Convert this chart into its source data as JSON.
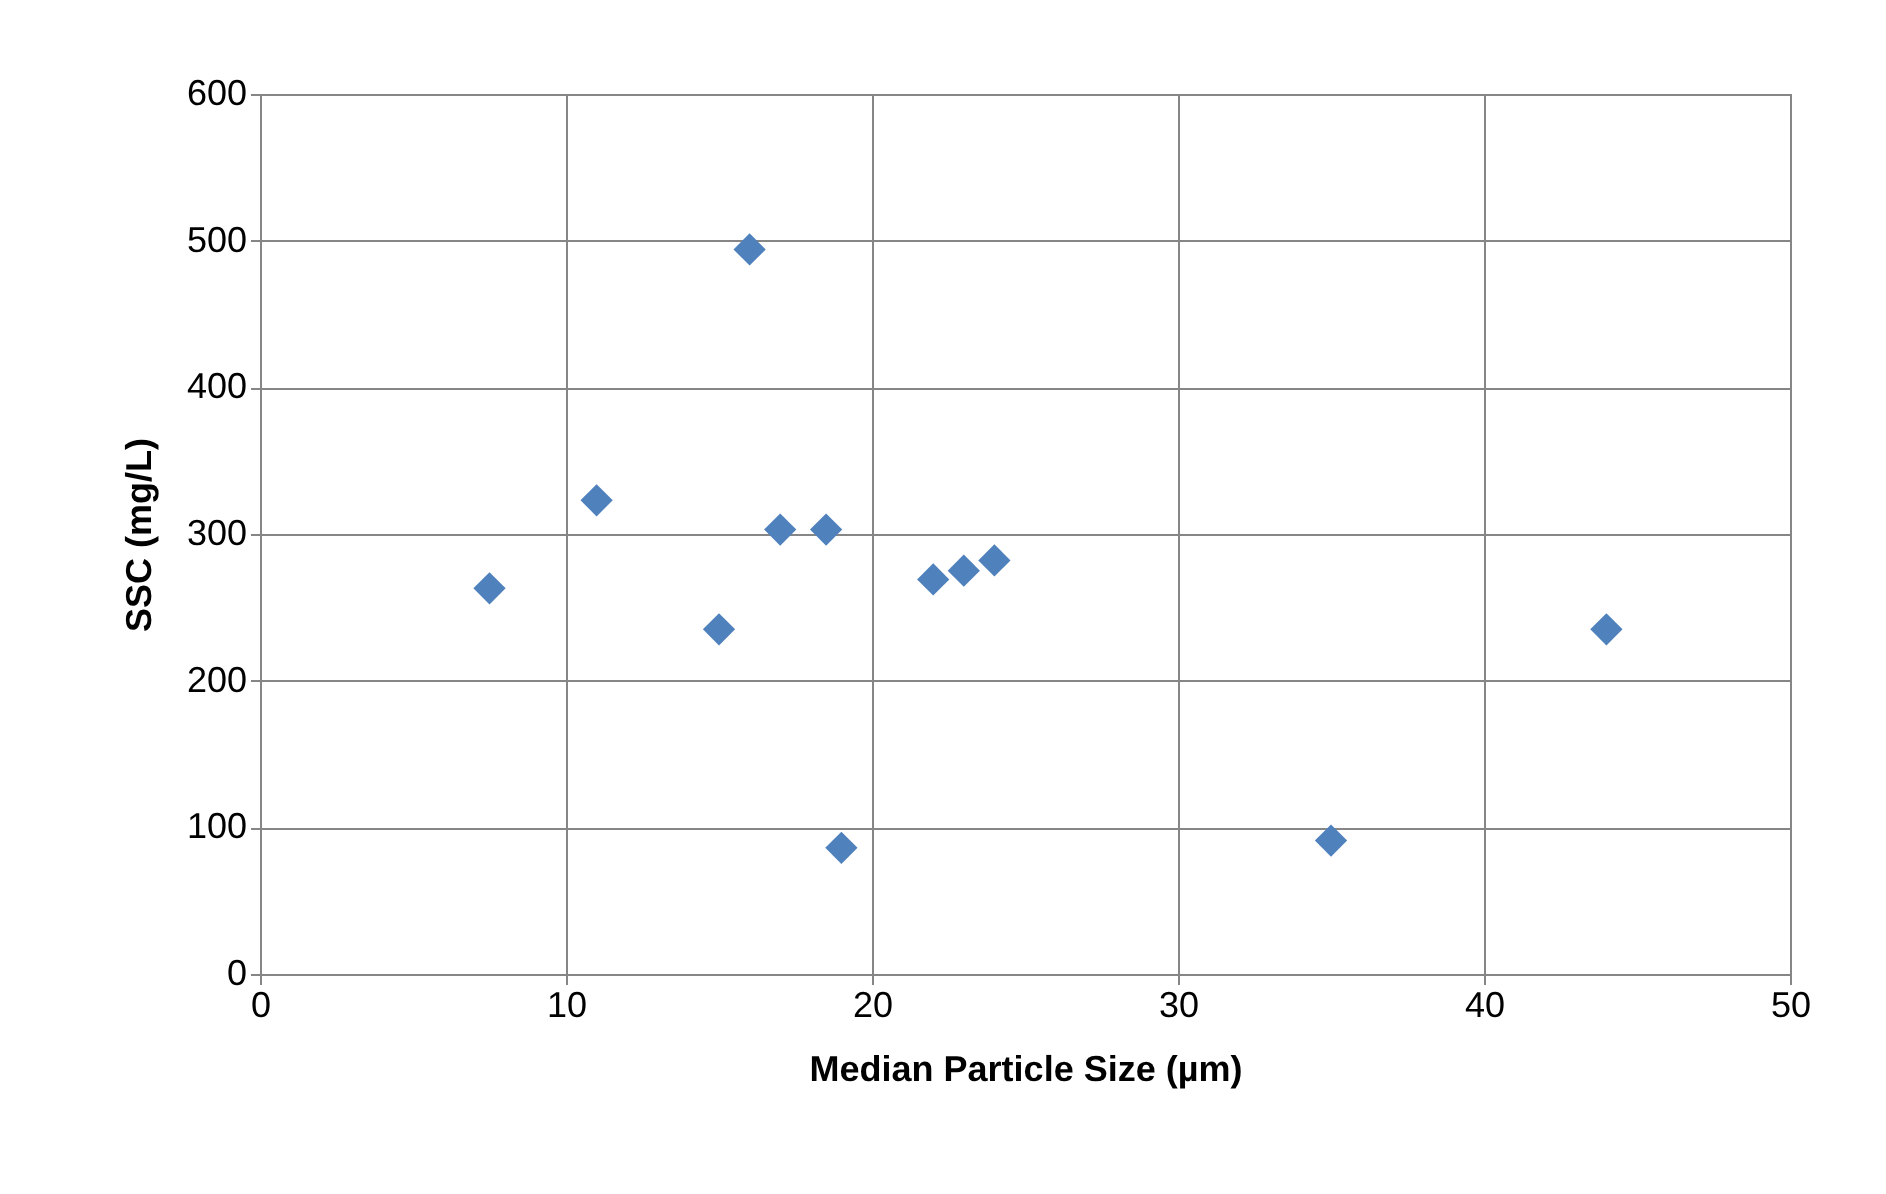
{
  "chart_data": {
    "type": "scatter",
    "xlabel": "Median Particle Size (µm)",
    "ylabel": "SSC (mg/L)",
    "x": [
      7.5,
      11,
      15,
      16,
      17,
      18.5,
      19,
      22,
      23,
      24,
      35,
      44
    ],
    "series": [
      {
        "color": "#4f81bd",
        "values": [
          263,
          323,
          235,
          494,
          303,
          303,
          86,
          269,
          275,
          282,
          91,
          235
        ]
      }
    ],
    "xlim": [
      0,
      50
    ],
    "xticks": [
      0,
      10,
      20,
      30,
      40,
      50
    ],
    "ylim": [
      0,
      600
    ],
    "yticks": [
      0,
      100,
      200,
      300,
      400,
      500,
      600
    ],
    "grid": true,
    "marker": "diamond"
  }
}
